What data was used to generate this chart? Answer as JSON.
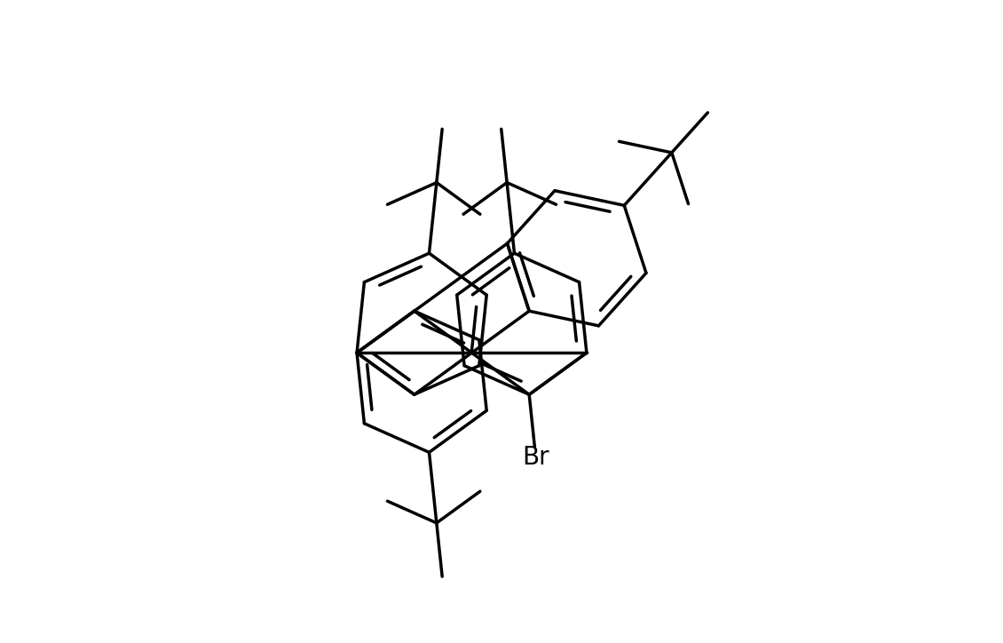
{
  "background_color": "#ffffff",
  "line_color": "#000000",
  "line_width": 2.5,
  "figsize": [
    11.3,
    7.24
  ],
  "dpi": 100,
  "br_label": "Br",
  "br_fontsize": 20
}
